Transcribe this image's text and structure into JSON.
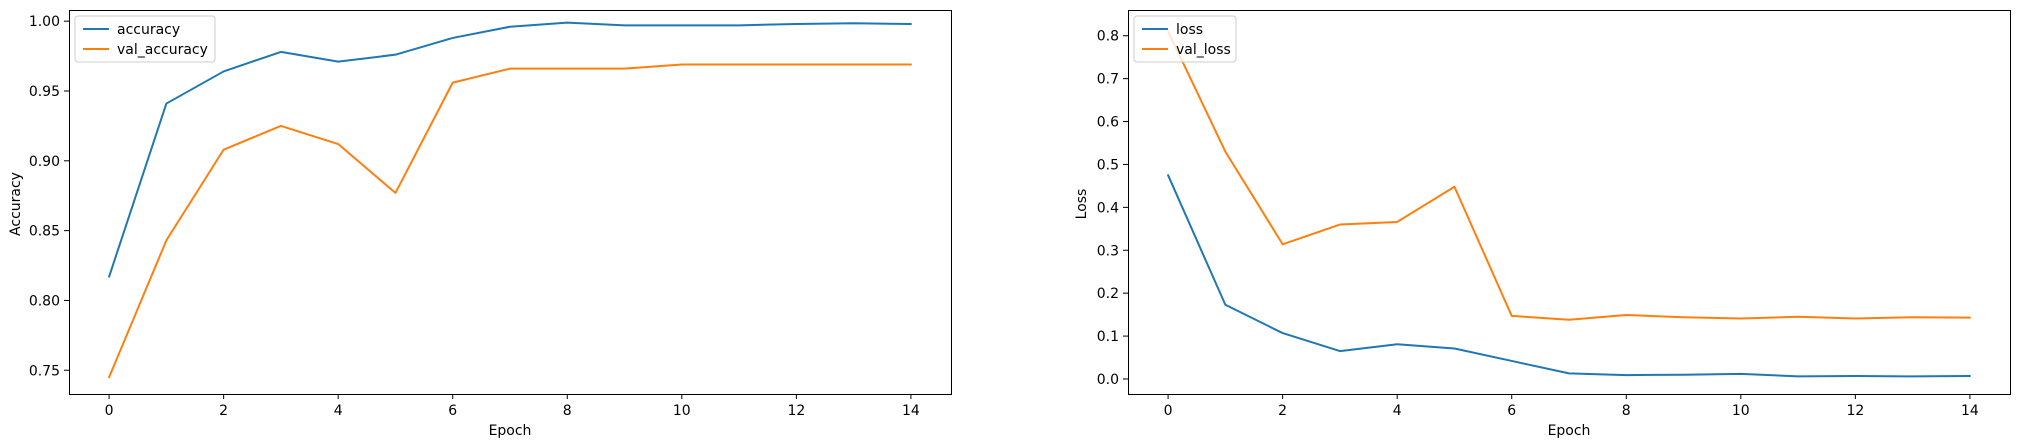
{
  "chart_data": [
    {
      "type": "line",
      "title": "",
      "xlabel": "Epoch",
      "ylabel": "Accuracy",
      "x": [
        0,
        1,
        2,
        3,
        4,
        5,
        6,
        7,
        8,
        9,
        10,
        11,
        12,
        13,
        14
      ],
      "xlim": [
        -0.7,
        14.7
      ],
      "ylim": [
        0.733,
        1.008
      ],
      "xticks": [
        0,
        2,
        4,
        6,
        8,
        10,
        12,
        14
      ],
      "yticks": [
        0.75,
        0.8,
        0.85,
        0.9,
        0.95,
        1.0
      ],
      "ytick_labels": [
        "0.75",
        "0.80",
        "0.85",
        "0.90",
        "0.95",
        "1.00"
      ],
      "grid": false,
      "legend_position": "top-left",
      "series": [
        {
          "name": "accuracy",
          "color": "#1f77b4",
          "values": [
            0.817,
            0.941,
            0.964,
            0.978,
            0.971,
            0.976,
            0.988,
            0.996,
            0.999,
            0.997,
            0.997,
            0.997,
            0.998,
            0.9985,
            0.998
          ]
        },
        {
          "name": "val_accuracy",
          "color": "#ff7f0e",
          "values": [
            0.745,
            0.843,
            0.908,
            0.925,
            0.912,
            0.877,
            0.956,
            0.966,
            0.966,
            0.966,
            0.969,
            0.969,
            0.969,
            0.969,
            0.969
          ]
        }
      ]
    },
    {
      "type": "line",
      "title": "",
      "xlabel": "Epoch",
      "ylabel": "Loss",
      "x": [
        0,
        1,
        2,
        3,
        4,
        5,
        6,
        7,
        8,
        9,
        10,
        11,
        12,
        13,
        14
      ],
      "xlim": [
        -0.7,
        14.7
      ],
      "ylim": [
        -0.035,
        0.86
      ],
      "xticks": [
        0,
        2,
        4,
        6,
        8,
        10,
        12,
        14
      ],
      "yticks": [
        0.0,
        0.1,
        0.2,
        0.3,
        0.4,
        0.5,
        0.6,
        0.7,
        0.8
      ],
      "ytick_labels": [
        "0.0",
        "0.1",
        "0.2",
        "0.3",
        "0.4",
        "0.5",
        "0.6",
        "0.7",
        "0.8"
      ],
      "grid": false,
      "legend_position": "top-left",
      "series": [
        {
          "name": "loss",
          "color": "#1f77b4",
          "values": [
            0.475,
            0.173,
            0.107,
            0.065,
            0.081,
            0.071,
            0.042,
            0.013,
            0.009,
            0.01,
            0.012,
            0.006,
            0.007,
            0.006,
            0.007
          ]
        },
        {
          "name": "val_loss",
          "color": "#ff7f0e",
          "values": [
            0.81,
            0.53,
            0.314,
            0.36,
            0.366,
            0.448,
            0.147,
            0.138,
            0.149,
            0.144,
            0.141,
            0.145,
            0.141,
            0.144,
            0.143
          ]
        }
      ]
    }
  ]
}
